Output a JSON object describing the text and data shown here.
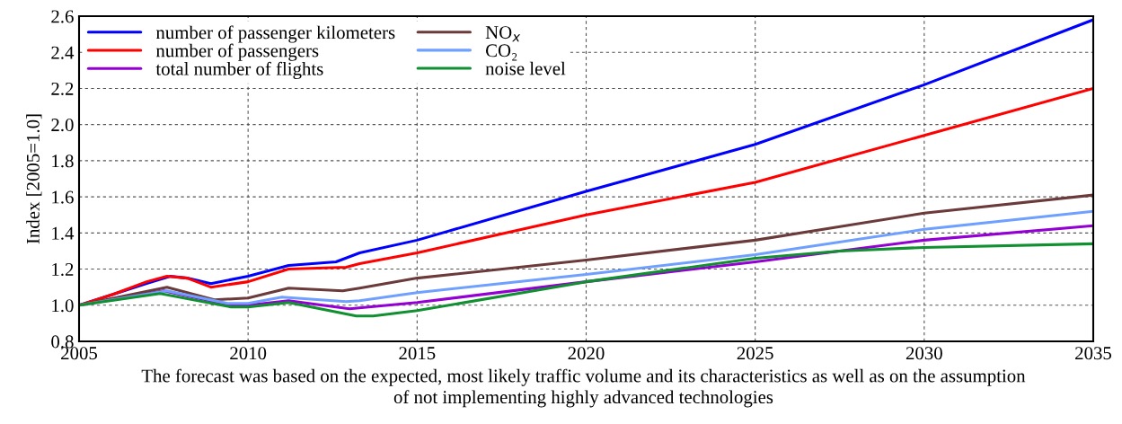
{
  "chart_data": {
    "type": "line",
    "ylabel": "Index [2005=1.0]",
    "xlim": [
      2005,
      2035
    ],
    "xticks": [
      2005,
      2010,
      2015,
      2020,
      2025,
      2030,
      2035
    ],
    "ylim": [
      0.8,
      2.6
    ],
    "yticks": [
      0.8,
      {
        "value": 1,
        "label": "1.0"
      },
      1.2,
      1.4,
      1.6,
      1.8,
      {
        "value": 2,
        "label": "2.0"
      },
      2.2,
      2.4,
      2.6
    ],
    "grid": true,
    "legend": "top left",
    "line_style": "solid",
    "marker": "none",
    "annotations": [
      "The forecast was based on the expected, most likely traffic volume and its characteristics as well as on the assumption",
      "of not implementing highly advanced technologies"
    ],
    "series": [
      {
        "name": "number of passenger kilometers",
        "color": "#0000ff",
        "x": [
          2005,
          2006,
          2007,
          2007.7,
          2008.2,
          2008.9,
          2010,
          2011.2,
          2012.6,
          2013.3,
          2015,
          2020,
          2025,
          2030,
          2035
        ],
        "values": [
          1.0,
          1.06,
          1.12,
          1.16,
          1.15,
          1.12,
          1.16,
          1.22,
          1.24,
          1.29,
          1.36,
          1.63,
          1.89,
          2.22,
          2.58
        ]
      },
      {
        "name": "number of passengers",
        "color": "#ff0000",
        "x": [
          2005,
          2006,
          2007,
          2007.6,
          2008.2,
          2008.9,
          2010,
          2011.2,
          2012.9,
          2013.3,
          2015,
          2020,
          2025,
          2030,
          2035
        ],
        "values": [
          1.0,
          1.06,
          1.13,
          1.16,
          1.15,
          1.1,
          1.13,
          1.2,
          1.21,
          1.23,
          1.29,
          1.5,
          1.68,
          1.94,
          2.2
        ]
      },
      {
        "name": "total number of flights",
        "color": "#9400d3",
        "x": [
          2005,
          2007.5,
          2009.5,
          2010,
          2011.2,
          2013,
          2015,
          2020,
          2025,
          2030,
          2035
        ],
        "values": [
          1.0,
          1.08,
          1.0,
          1.0,
          1.025,
          0.98,
          1.015,
          1.13,
          1.24,
          1.36,
          1.44
        ]
      },
      {
        "name": "NO$_{x}$",
        "color": "#6b3a3a",
        "x": [
          2005,
          2007.6,
          2009,
          2010,
          2011.2,
          2012.8,
          2013.3,
          2015,
          2020,
          2025,
          2030,
          2035
        ],
        "values": [
          1.0,
          1.1,
          1.03,
          1.04,
          1.095,
          1.08,
          1.095,
          1.15,
          1.25,
          1.36,
          1.51,
          1.61
        ]
      },
      {
        "name": "CO₂",
        "color": "#6fa0ff",
        "x": [
          2005,
          2007.6,
          2009.4,
          2010,
          2011,
          2012.9,
          2013.3,
          2015,
          2020,
          2025,
          2030,
          2035
        ],
        "values": [
          1.0,
          1.08,
          1.01,
          1.01,
          1.045,
          1.02,
          1.025,
          1.07,
          1.17,
          1.28,
          1.42,
          1.52
        ]
      },
      {
        "name": "noise level",
        "color": "#109030",
        "x": [
          2005,
          2007.4,
          2009.5,
          2010,
          2011.2,
          2013.2,
          2013.7,
          2015,
          2020,
          2025,
          2027.5,
          2030,
          2035
        ],
        "values": [
          1.0,
          1.065,
          0.99,
          0.99,
          1.015,
          0.94,
          0.94,
          0.97,
          1.13,
          1.26,
          1.3,
          1.32,
          1.34
        ]
      }
    ]
  }
}
